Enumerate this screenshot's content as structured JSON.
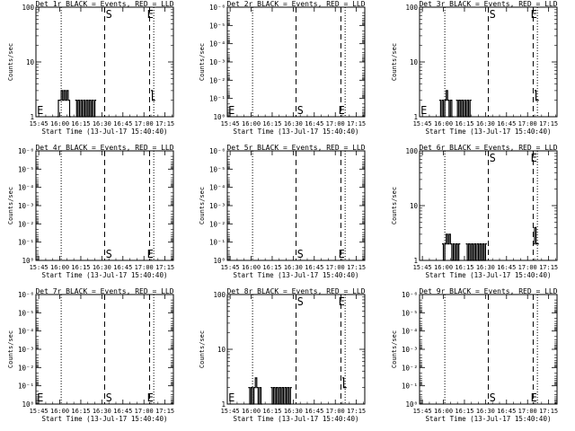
{
  "chart_data": [
    {
      "type": "line",
      "title": "Det 1r BLACK = Events, RED = LLD",
      "xlabel": "Start Time (13-Jul-17 15:40:40)",
      "ylabel": "Counts/sec",
      "xticks": [
        "15:45",
        "16:00",
        "16:15",
        "16:30",
        "16:45",
        "17:00",
        "17:15"
      ],
      "yscale": "log",
      "yticks": [
        {
          "v": 1,
          "label": "1"
        },
        {
          "v": 10,
          "label": "10"
        },
        {
          "v": 100,
          "label": "100"
        }
      ],
      "ylim": [
        1,
        100
      ],
      "markers": [
        {
          "label": "E",
          "t": 1
        },
        {
          "label": "S",
          "t": 50
        },
        {
          "label": "E",
          "t": 79.5
        }
      ],
      "dotted": [
        16,
        82
      ],
      "dashed": [
        47,
        79
      ],
      "series": [
        {
          "segments": [
            {
              "from": 13,
              "to": 22,
              "values": [
                1,
                2,
                2,
                3,
                2,
                3,
                2,
                3,
                2,
                1
              ]
            },
            {
              "from": 26,
              "to": 40,
              "values": [
                2,
                1,
                2,
                1,
                2,
                1,
                2,
                1,
                2,
                1,
                2,
                1,
                2,
                1,
                2
              ]
            },
            {
              "from": 80,
              "to": 82,
              "values": [
                3,
                2,
                2
              ]
            }
          ]
        }
      ]
    },
    {
      "type": "line",
      "title": "Det 2r BLACK = Events, RED = LLD",
      "xlabel": "Start Time (13-Jul-17 15:40:40)",
      "ylabel": "Counts/sec",
      "xticks": [
        "15:45",
        "16:00",
        "16:15",
        "16:30",
        "16:45",
        "17:00",
        "17:15"
      ],
      "yscale": "log",
      "yticks": [
        {
          "v": 1,
          "label": "10⁰"
        },
        {
          "v": 0.1,
          "label": "10⁻¹"
        },
        {
          "v": 0.01,
          "label": "10⁻²"
        },
        {
          "v": 0.001,
          "label": "10⁻³"
        },
        {
          "v": 0.0001,
          "label": "10⁻⁴"
        },
        {
          "v": 1e-05,
          "label": "10⁻⁵"
        },
        {
          "v": 1e-06,
          "label": "10⁻⁶"
        }
      ],
      "ylim": [
        1,
        1e-06
      ],
      "markers": [
        {
          "label": "E",
          "t": 1
        },
        {
          "label": "S",
          "t": 50
        },
        {
          "label": "E",
          "t": 79.5
        }
      ],
      "dotted": [
        16,
        82
      ],
      "dashed": [
        47,
        79
      ],
      "series": []
    },
    {
      "type": "line",
      "title": "Det 3r BLACK = Events, RED = LLD",
      "xlabel": "Start Time (13-Jul-17 15:40:40)",
      "ylabel": "Counts/sec",
      "xticks": [
        "15:45",
        "16:00",
        "16:15",
        "16:30",
        "16:45",
        "17:00",
        "17:15"
      ],
      "yscale": "log",
      "yticks": [
        {
          "v": 1,
          "label": "1"
        },
        {
          "v": 10,
          "label": "10"
        },
        {
          "v": 100,
          "label": "100"
        }
      ],
      "ylim": [
        1,
        100
      ],
      "markers": [
        {
          "label": "E",
          "t": 1
        },
        {
          "label": "S",
          "t": 50
        },
        {
          "label": "E",
          "t": 79.5
        }
      ],
      "dotted": [
        16,
        82
      ],
      "dashed": [
        47,
        79
      ],
      "series": [
        {
          "segments": [
            {
              "from": 12,
              "to": 21,
              "values": [
                2,
                1,
                2,
                1,
                2,
                3,
                2,
                1,
                2,
                1
              ]
            },
            {
              "from": 24,
              "to": 34,
              "values": [
                2,
                1,
                2,
                1,
                2,
                1,
                2,
                1,
                2,
                1,
                2
              ]
            },
            {
              "from": 80,
              "to": 82,
              "values": [
                3,
                2,
                2
              ]
            }
          ]
        }
      ]
    },
    {
      "type": "line",
      "title": "Det 4r BLACK = Events, RED = LLD",
      "xlabel": "Start Time (13-Jul-17 15:40:40)",
      "ylabel": "Counts/sec",
      "xticks": [
        "15:45",
        "16:00",
        "16:15",
        "16:30",
        "16:45",
        "17:00",
        "17:15"
      ],
      "yscale": "log",
      "yticks": [
        {
          "v": 1,
          "label": "10⁰"
        },
        {
          "v": 0.1,
          "label": "10⁻¹"
        },
        {
          "v": 0.01,
          "label": "10⁻²"
        },
        {
          "v": 0.001,
          "label": "10⁻³"
        },
        {
          "v": 0.0001,
          "label": "10⁻⁴"
        },
        {
          "v": 1e-05,
          "label": "10⁻⁵"
        },
        {
          "v": 1e-06,
          "label": "10⁻⁶"
        }
      ],
      "ylim": [
        1,
        1e-06
      ],
      "markers": [
        {
          "label": "S",
          "t": 50
        },
        {
          "label": "E",
          "t": 79.5
        }
      ],
      "dotted": [
        16,
        82
      ],
      "dashed": [
        47,
        79
      ],
      "series": []
    },
    {
      "type": "line",
      "title": "Det 5r BLACK = Events, RED = LLD",
      "xlabel": "Start Time (13-Jul-17 15:40:40)",
      "ylabel": "Counts/sec",
      "xticks": [
        "15:45",
        "16:00",
        "16:15",
        "16:30",
        "16:45",
        "17:00",
        "17:15"
      ],
      "yscale": "log",
      "yticks": [
        {
          "v": 1,
          "label": "10⁰"
        },
        {
          "v": 0.1,
          "label": "10⁻¹"
        },
        {
          "v": 0.01,
          "label": "10⁻²"
        },
        {
          "v": 0.001,
          "label": "10⁻³"
        },
        {
          "v": 0.0001,
          "label": "10⁻⁴"
        },
        {
          "v": 1e-05,
          "label": "10⁻⁵"
        },
        {
          "v": 1e-06,
          "label": "10⁻⁶"
        }
      ],
      "ylim": [
        1,
        1e-06
      ],
      "markers": [
        {
          "label": "S",
          "t": 50
        },
        {
          "label": "E",
          "t": 79.5
        }
      ],
      "dotted": [
        16,
        82
      ],
      "dashed": [
        47,
        79
      ],
      "series": []
    },
    {
      "type": "line",
      "title": "Det 6r BLACK = Events, RED = LLD",
      "xlabel": "Start Time (13-Jul-17 15:40:40)",
      "ylabel": "Counts/sec",
      "xticks": [
        "15:45",
        "16:00",
        "16:15",
        "16:30",
        "16:45",
        "17:00",
        "17:15"
      ],
      "yscale": "log",
      "yticks": [
        {
          "v": 1,
          "label": "1"
        },
        {
          "v": 10,
          "label": "10"
        },
        {
          "v": 100,
          "label": "100"
        }
      ],
      "ylim": [
        1,
        100
      ],
      "markers": [
        {
          "label": "S",
          "t": 50
        },
        {
          "label": "E",
          "t": 79.5
        }
      ],
      "dotted": [
        16,
        82
      ],
      "dashed": [
        47,
        79
      ],
      "series": [
        {
          "segments": [
            {
              "from": 14,
              "to": 26,
              "values": [
                2,
                1,
                2,
                3,
                2,
                3,
                2,
                1,
                2,
                1,
                2,
                1,
                2
              ]
            },
            {
              "from": 31,
              "to": 45,
              "values": [
                2,
                1,
                2,
                1,
                2,
                1,
                2,
                1,
                2,
                1,
                2,
                1,
                2,
                1,
                2
              ]
            },
            {
              "from": 79,
              "to": 82,
              "values": [
                2,
                4,
                2,
                2
              ]
            }
          ]
        }
      ]
    },
    {
      "type": "line",
      "title": "Det 7r BLACK = Events, RED = LLD",
      "xlabel": "Start Time (13-Jul-17 15:40:40)",
      "ylabel": "Counts/sec",
      "xticks": [
        "15:45",
        "16:00",
        "16:15",
        "16:30",
        "16:45",
        "17:00",
        "17:15"
      ],
      "yscale": "log",
      "yticks": [
        {
          "v": 1,
          "label": "10⁰"
        },
        {
          "v": 0.1,
          "label": "10⁻¹"
        },
        {
          "v": 0.01,
          "label": "10⁻²"
        },
        {
          "v": 0.001,
          "label": "10⁻³"
        },
        {
          "v": 0.0001,
          "label": "10⁻⁴"
        },
        {
          "v": 1e-05,
          "label": "10⁻⁵"
        },
        {
          "v": 1e-06,
          "label": "10⁻⁶"
        }
      ],
      "ylim": [
        1,
        1e-06
      ],
      "markers": [
        {
          "label": "E",
          "t": 1
        },
        {
          "label": "S",
          "t": 50
        },
        {
          "label": "E",
          "t": 79.5
        }
      ],
      "dotted": [
        16,
        82
      ],
      "dashed": [
        47,
        79
      ],
      "series": []
    },
    {
      "type": "line",
      "title": "Det 8r BLACK = Events, RED = LLD",
      "xlabel": "Start Time (13-Jul-17 15:40:40)",
      "ylabel": "Counts/sec",
      "xticks": [
        "15:45",
        "16:00",
        "16:15",
        "16:30",
        "16:45",
        "17:00",
        "17:15"
      ],
      "yscale": "log",
      "yticks": [
        {
          "v": 1,
          "label": "1"
        },
        {
          "v": 10,
          "label": "10"
        },
        {
          "v": 100,
          "label": "100"
        }
      ],
      "ylim": [
        1,
        100
      ],
      "markers": [
        {
          "label": "E",
          "t": 1
        },
        {
          "label": "S",
          "t": 50
        },
        {
          "label": "E",
          "t": 79.5
        }
      ],
      "dotted": [
        16,
        82
      ],
      "dashed": [
        47,
        79
      ],
      "series": [
        {
          "segments": [
            {
              "from": 13,
              "to": 22,
              "values": [
                2,
                1,
                2,
                1,
                2,
                3,
                2,
                1,
                2,
                1
              ]
            },
            {
              "from": 29,
              "to": 43,
              "values": [
                2,
                1,
                2,
                1,
                2,
                1,
                2,
                1,
                2,
                1,
                2,
                1,
                2,
                1,
                2
              ]
            },
            {
              "from": 80,
              "to": 82,
              "values": [
                3,
                2,
                2
              ]
            }
          ]
        }
      ]
    },
    {
      "type": "line",
      "title": "Det 9r BLACK = Events, RED = LLD",
      "xlabel": "Start Time (13-Jul-17 15:40:40)",
      "ylabel": "Counts/sec",
      "xticks": [
        "15:45",
        "16:00",
        "16:15",
        "16:30",
        "16:45",
        "17:00",
        "17:15"
      ],
      "yscale": "log",
      "yticks": [
        {
          "v": 1,
          "label": "10⁰"
        },
        {
          "v": 0.1,
          "label": "10⁻¹"
        },
        {
          "v": 0.01,
          "label": "10⁻²"
        },
        {
          "v": 0.001,
          "label": "10⁻³"
        },
        {
          "v": 0.0001,
          "label": "10⁻⁴"
        },
        {
          "v": 1e-05,
          "label": "10⁻⁵"
        },
        {
          "v": 1e-06,
          "label": "10⁻⁶"
        }
      ],
      "ylim": [
        1,
        1e-06
      ],
      "markers": [
        {
          "label": "S",
          "t": 50
        },
        {
          "label": "E",
          "t": 79.5
        }
      ],
      "dotted": [
        16,
        82
      ],
      "dashed": [
        47,
        79
      ],
      "series": []
    }
  ]
}
